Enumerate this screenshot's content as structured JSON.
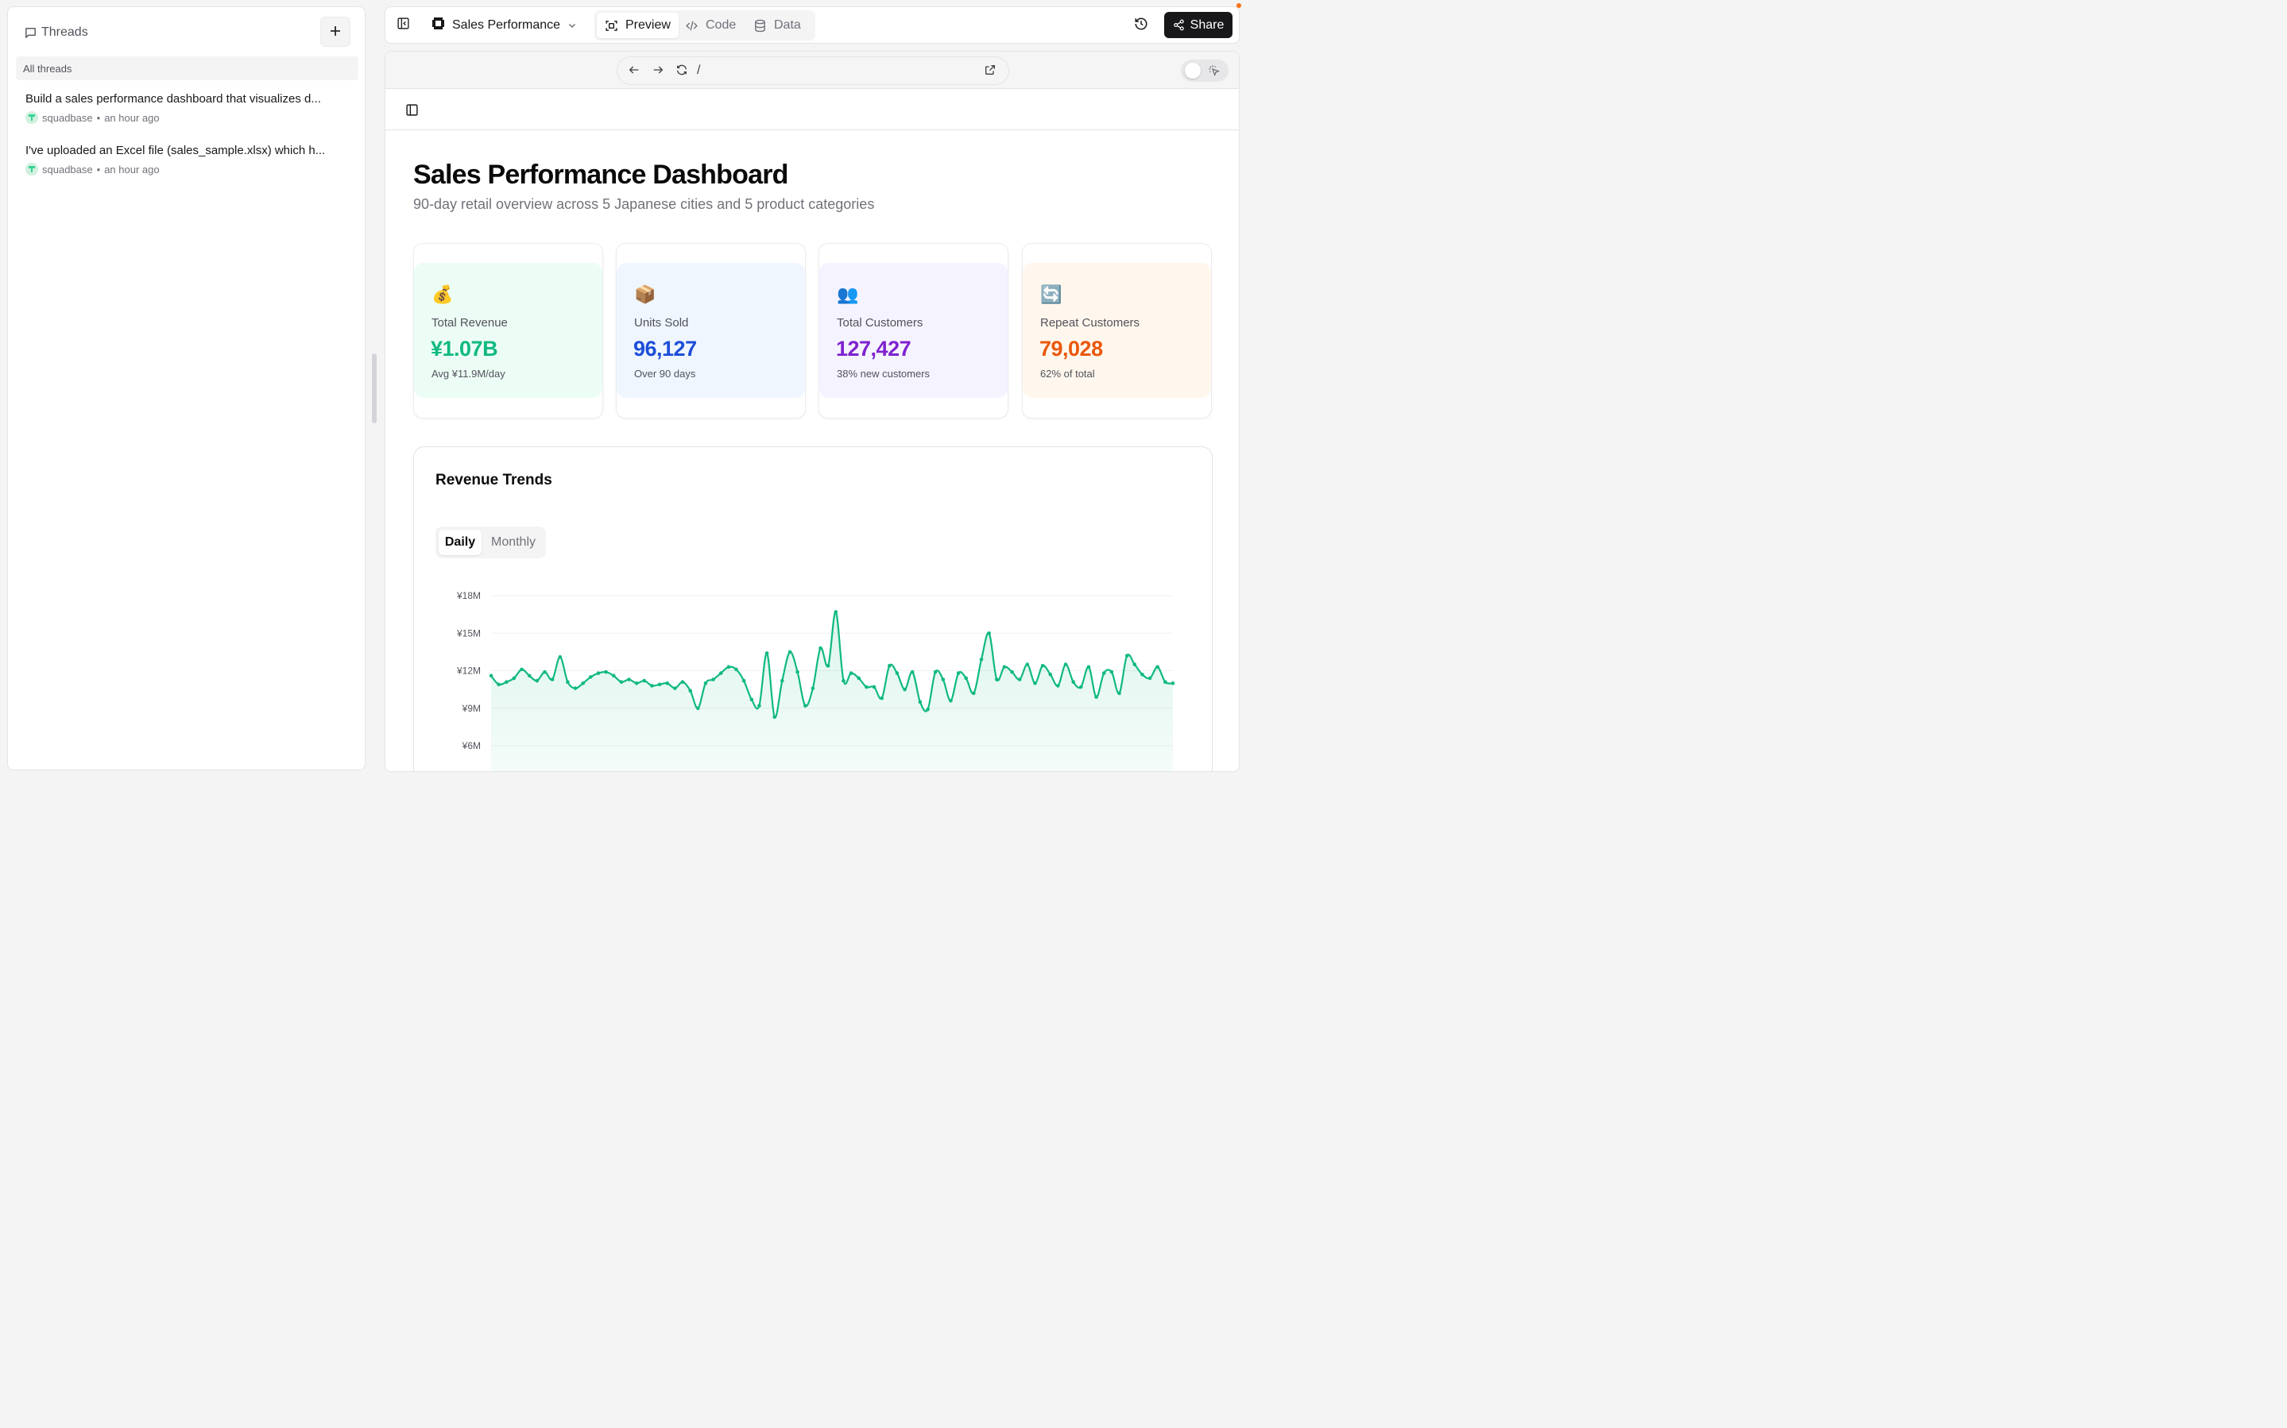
{
  "sidebar": {
    "title": "Threads",
    "filter": "All threads",
    "threads": [
      {
        "title": "Build a sales performance dashboard that visualizes d...",
        "author": "squadbase",
        "time": "an hour ago"
      },
      {
        "title": "I've uploaded an Excel file (sales_sample.xlsx) which h...",
        "author": "squadbase",
        "time": "an hour ago"
      }
    ]
  },
  "topbar": {
    "app_name": "Sales Performance",
    "tabs": [
      {
        "label": "Preview",
        "icon": "preview-icon",
        "active": true
      },
      {
        "label": "Code",
        "icon": "code-icon",
        "active": false
      },
      {
        "label": "Data",
        "icon": "database-icon",
        "active": false
      }
    ],
    "share_label": "Share"
  },
  "browser": {
    "path": "/"
  },
  "dashboard": {
    "title": "Sales Performance Dashboard",
    "subtitle": "90-day retail overview across 5 Japanese cities and 5 product categories",
    "kpis": [
      {
        "emoji": "💰",
        "label": "Total Revenue",
        "value": "¥1.07B",
        "sub": "Avg ¥11.9M/day",
        "color": "#10b981",
        "bg": "#ecfdf5"
      },
      {
        "emoji": "📦",
        "label": "Units Sold",
        "value": "96,127",
        "sub": "Over 90 days",
        "color": "#1d4ed8",
        "bg": "#eff6ff"
      },
      {
        "emoji": "👥",
        "label": "Total Customers",
        "value": "127,427",
        "sub": "38% new customers",
        "color": "#7e22ce",
        "bg": "#f5f3ff"
      },
      {
        "emoji": "🔄",
        "label": "Repeat Customers",
        "value": "79,028",
        "sub": "62% of total",
        "color": "#ea580c",
        "bg": "#fff7ed"
      }
    ],
    "chart": {
      "title": "Revenue Trends",
      "toggle": {
        "daily": "Daily",
        "monthly": "Monthly",
        "selected": "Daily"
      }
    }
  },
  "chart_data": {
    "type": "area",
    "title": "Revenue Trends",
    "xlabel": "",
    "ylabel": "",
    "y_ticks": [
      "¥18M",
      "¥15M",
      "¥12M",
      "¥9M",
      "¥6M"
    ],
    "y_tick_values": [
      18,
      15,
      12,
      9,
      6
    ],
    "ylim": [
      4,
      18
    ],
    "grid": true,
    "color": "#10b981",
    "x": [
      1,
      2,
      3,
      4,
      5,
      6,
      7,
      8,
      9,
      10,
      11,
      12,
      13,
      14,
      15,
      16,
      17,
      18,
      19,
      20,
      21,
      22,
      23,
      24,
      25,
      26,
      27,
      28,
      29,
      30,
      31,
      32,
      33,
      34,
      35,
      36,
      37,
      38,
      39,
      40,
      41,
      42,
      43,
      44,
      45,
      46,
      47,
      48,
      49,
      50,
      51,
      52,
      53,
      54,
      55,
      56,
      57,
      58,
      59,
      60,
      61,
      62,
      63,
      64,
      65,
      66,
      67,
      68,
      69,
      70,
      71,
      72,
      73,
      74,
      75,
      76,
      77,
      78,
      79,
      80,
      81,
      82,
      83,
      84,
      85,
      86,
      87,
      88,
      89,
      90
    ],
    "series": [
      {
        "values": [
          11.6,
          10.9,
          11.1,
          11.4,
          12.1,
          11.6,
          11.2,
          11.9,
          11.3,
          13.1,
          11.1,
          10.6,
          11.0,
          11.5,
          11.8,
          11.9,
          11.6,
          11.1,
          11.3,
          11.0,
          11.2,
          10.8,
          10.9,
          11.0,
          10.6,
          11.1,
          10.4,
          9.0,
          11.0,
          11.3,
          11.8,
          12.3,
          12.1,
          11.2,
          9.7,
          9.2,
          13.4,
          8.3,
          11.2,
          13.5,
          11.9,
          9.2,
          10.6,
          13.8,
          12.4,
          16.7,
          11.2,
          11.8,
          11.4,
          10.7,
          10.7,
          9.8,
          12.4,
          11.8,
          10.5,
          11.9,
          9.5,
          8.9,
          11.9,
          11.3,
          9.6,
          11.8,
          11.4,
          10.2,
          12.9,
          15.0,
          11.3,
          12.3,
          11.9,
          11.3,
          12.5,
          11.0,
          12.4,
          11.7,
          10.8,
          12.5,
          11.1,
          10.7,
          12.3,
          9.9,
          11.8,
          11.9,
          10.2,
          13.2,
          12.5,
          11.7,
          11.4,
          12.3,
          11.1,
          11.0
        ]
      }
    ]
  }
}
